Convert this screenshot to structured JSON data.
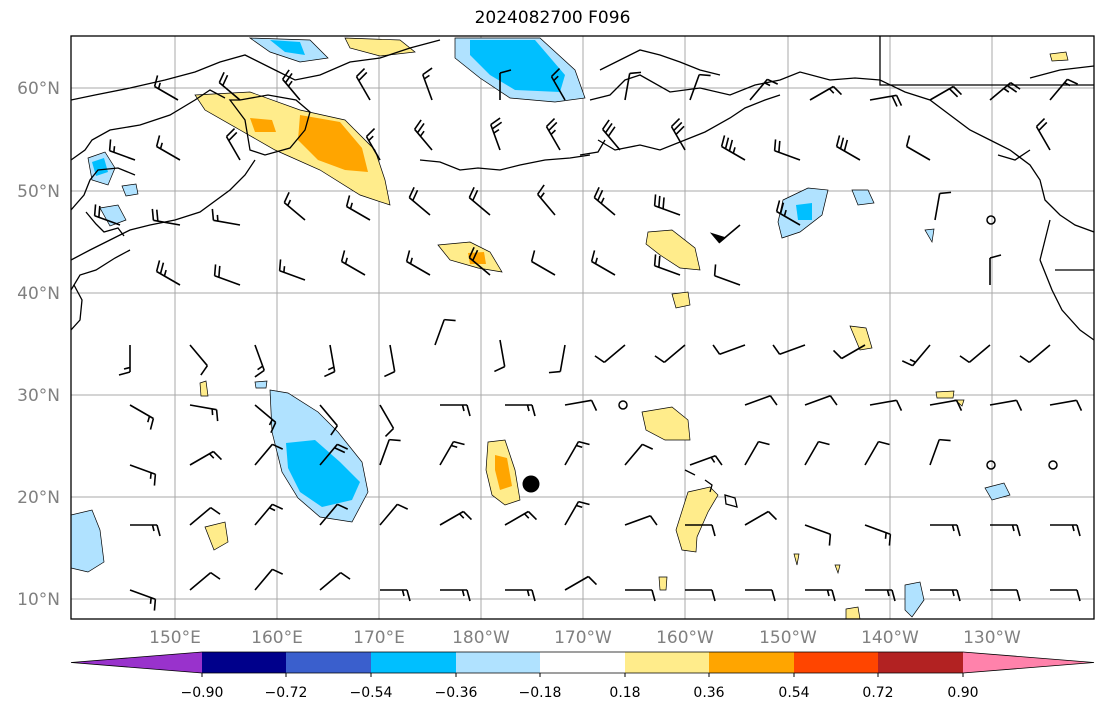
{
  "title": "2024082700 F096",
  "map": {
    "lat_labels": [
      "10°N",
      "20°N",
      "30°N",
      "40°N",
      "50°N",
      "60°N"
    ],
    "lon_labels": [
      "150°E",
      "160°E",
      "170°E",
      "180°W",
      "170°W",
      "160°W",
      "150°W",
      "140°W",
      "130°W"
    ]
  },
  "colorbar": {
    "ticks": [
      "−0.90",
      "−0.72",
      "−0.54",
      "−0.36",
      "−0.18",
      "0.18",
      "0.36",
      "0.54",
      "0.72",
      "0.90"
    ],
    "colors": [
      "#9932cc",
      "#00008b",
      "#3a5fcd",
      "#00bfff",
      "#b0e2ff",
      "#ffffff",
      "#ffec8b",
      "#ffa500",
      "#ff4500",
      "#b22222",
      "#ff82ab"
    ]
  },
  "colors": {
    "land_outline": "#000000",
    "grid": "#a9a9a9",
    "wind_barb": "#000000"
  }
}
